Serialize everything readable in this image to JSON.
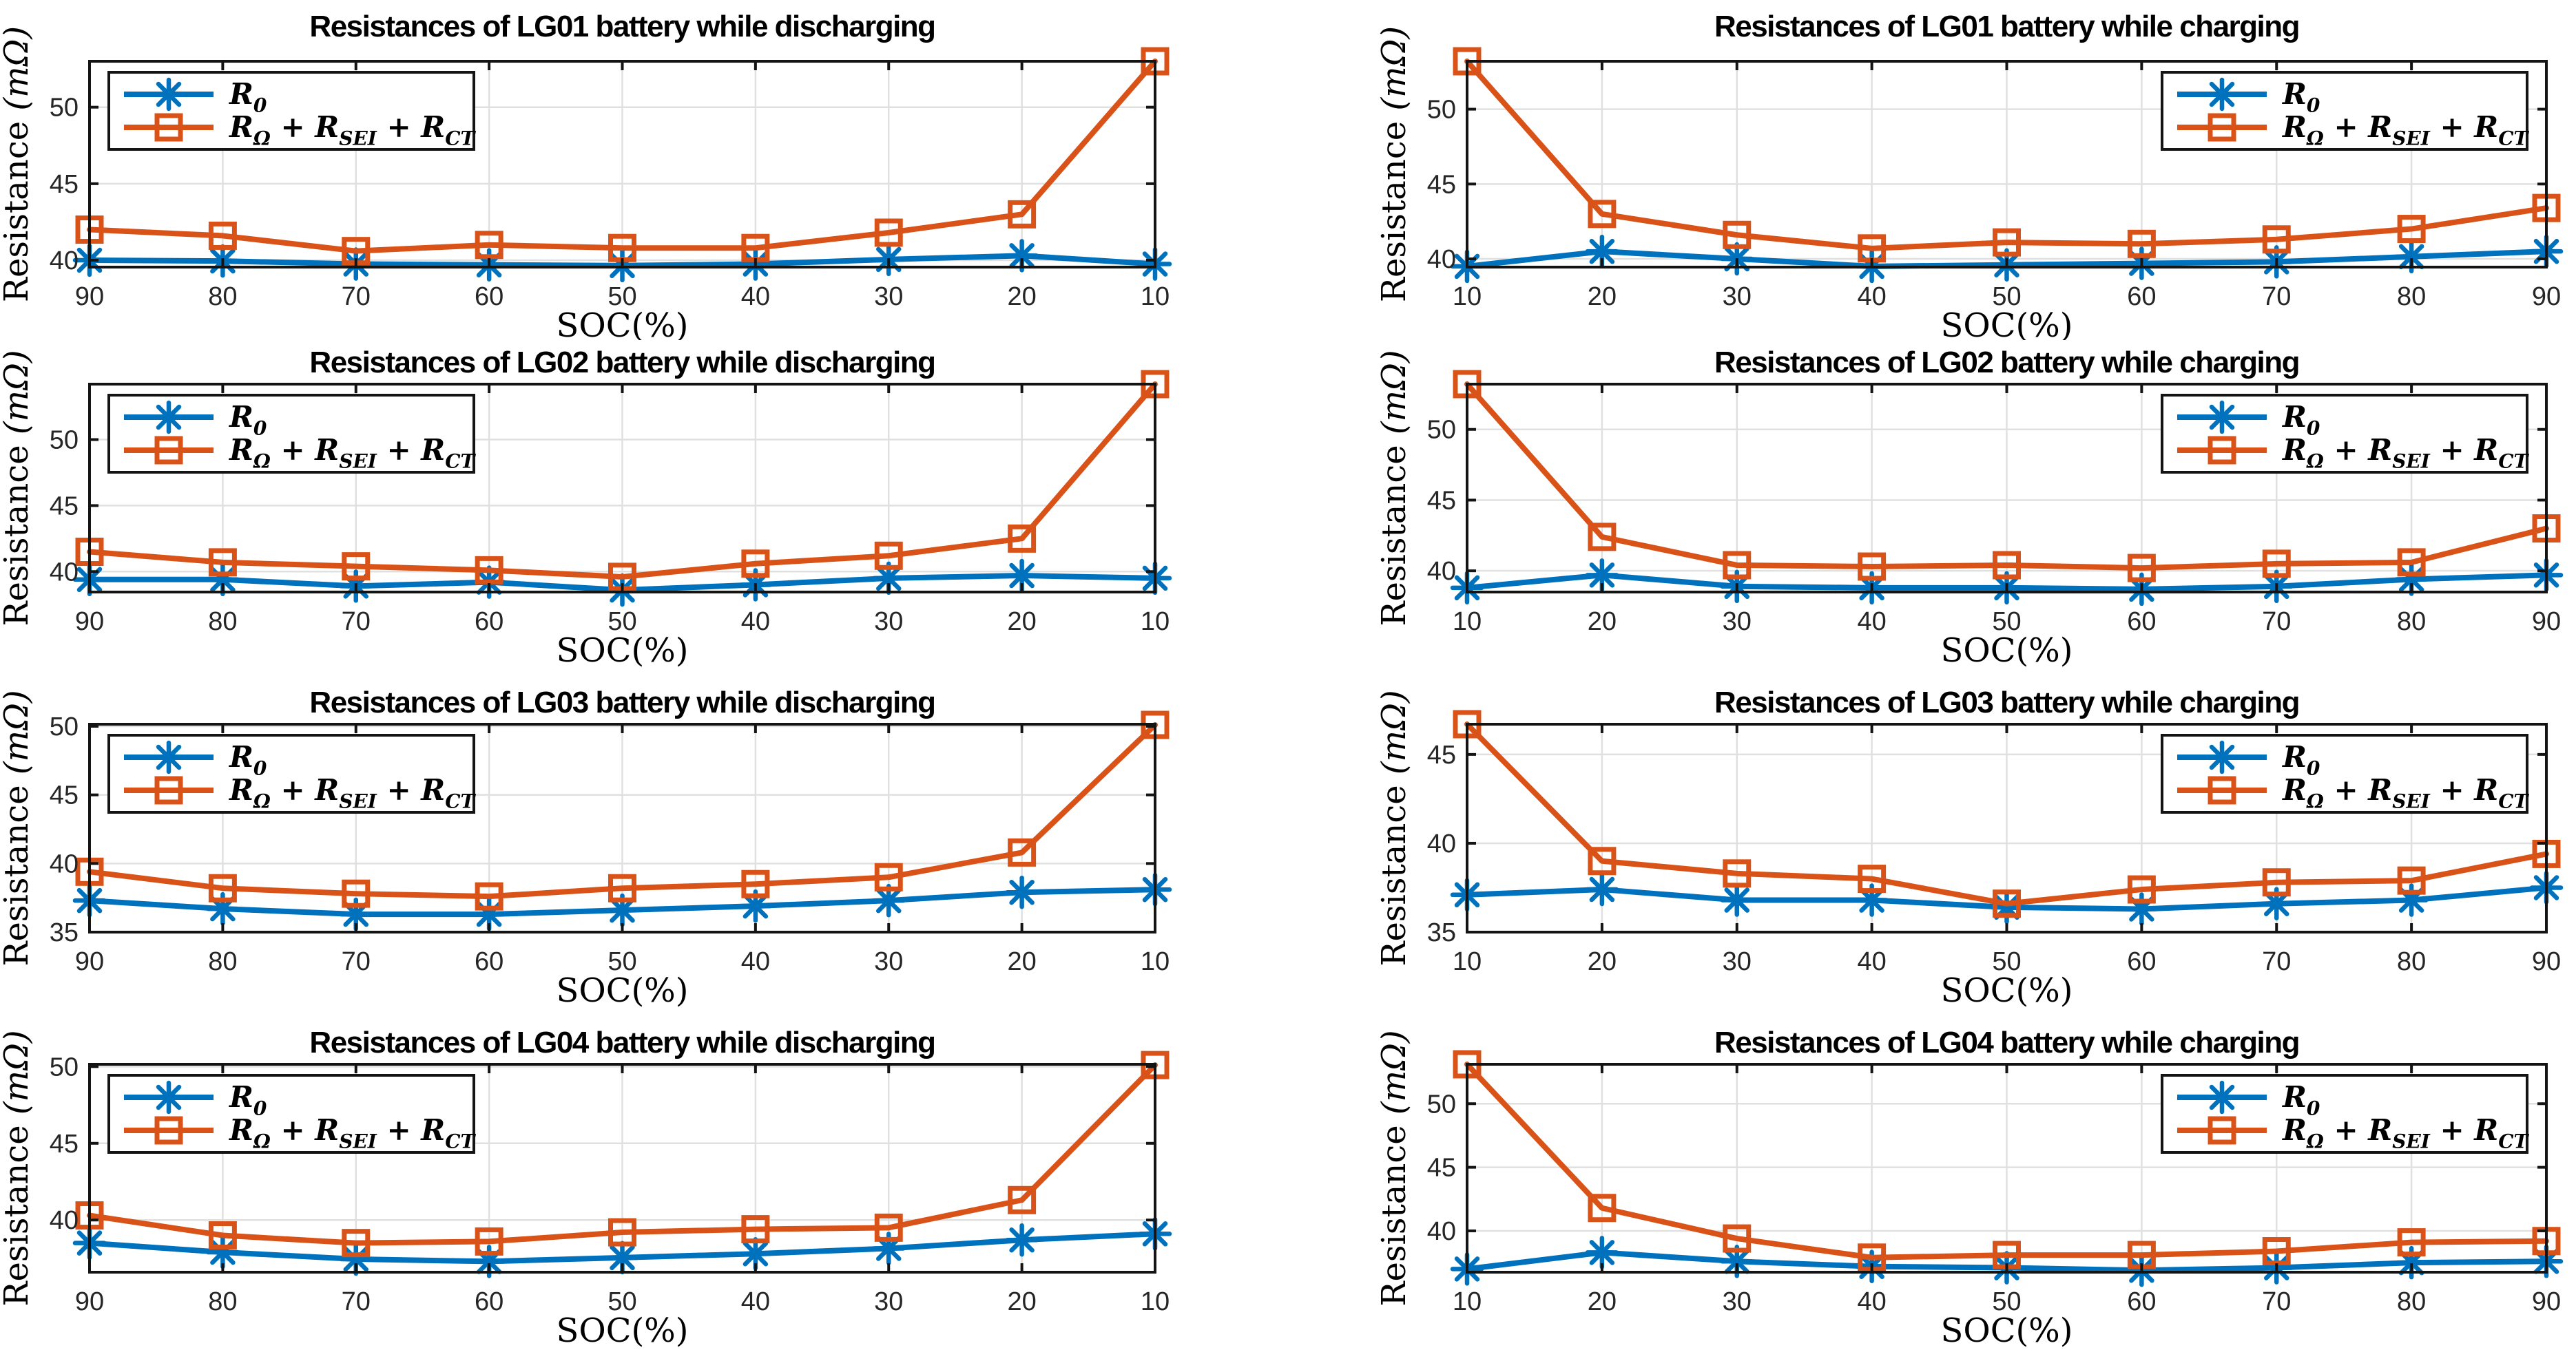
{
  "figure": {
    "ylabel": "Resistance (mΩ)",
    "xlabel": "SOC(%)",
    "series_labels": [
      "R_0",
      "R_Ω + R_SEI + R_CT"
    ],
    "colors": {
      "r0": "#0072BD",
      "rsum": "#D95319",
      "grid": "#E0E0E0",
      "axis": "#141414",
      "tick_label": "#262626",
      "background": "#FFFFFF",
      "legend_border": "#141414"
    }
  },
  "chart_data": [
    {
      "type": "line",
      "title": "Resistances of LG01 battery while discharging",
      "xlabel": "SOC(%)",
      "ylabel": "Resistance (mΩ)",
      "x": [
        90,
        80,
        70,
        60,
        50,
        40,
        30,
        20,
        10
      ],
      "ylim": [
        39.55,
        53.0
      ],
      "yticks": [
        40,
        45,
        50
      ],
      "grid": true,
      "legend_position": "northwest",
      "series": [
        {
          "id": "r0",
          "name": "R_0",
          "color": "#0072BD",
          "marker": "asterisk",
          "values": [
            40.0,
            39.95,
            39.75,
            39.7,
            39.65,
            39.75,
            40.05,
            40.3,
            39.75
          ]
        },
        {
          "id": "rsum",
          "name": "R_Ω + R_SEI + R_CT",
          "color": "#D95319",
          "marker": "square",
          "values": [
            42.0,
            41.6,
            40.6,
            41.0,
            40.8,
            40.8,
            41.8,
            43.0,
            53.0
          ]
        }
      ]
    },
    {
      "type": "line",
      "title": "Resistances of LG01 battery while charging",
      "xlabel": "SOC(%)",
      "ylabel": "Resistance (mΩ)",
      "x": [
        10,
        20,
        30,
        40,
        50,
        60,
        70,
        80,
        90
      ],
      "ylim": [
        39.45,
        53.2
      ],
      "yticks": [
        40,
        45,
        50
      ],
      "grid": true,
      "legend_position": "northeast",
      "series": [
        {
          "id": "r0",
          "name": "R_0",
          "color": "#0072BD",
          "marker": "asterisk",
          "values": [
            39.5,
            40.5,
            40.0,
            39.5,
            39.6,
            39.7,
            39.8,
            40.15,
            40.5
          ]
        },
        {
          "id": "rsum",
          "name": "R_Ω + R_SEI + R_CT",
          "color": "#D95319",
          "marker": "square",
          "values": [
            53.2,
            43.0,
            41.6,
            40.7,
            41.1,
            41.0,
            41.3,
            42.0,
            43.4
          ]
        }
      ]
    },
    {
      "type": "line",
      "title": "Resistances of LG02 battery while discharging",
      "xlabel": "SOC(%)",
      "ylabel": "Resistance (mΩ)",
      "x": [
        90,
        80,
        70,
        60,
        50,
        40,
        30,
        20,
        10
      ],
      "ylim": [
        38.45,
        54.2
      ],
      "yticks": [
        40,
        45,
        50
      ],
      "grid": true,
      "legend_position": "northwest",
      "series": [
        {
          "id": "r0",
          "name": "R_0",
          "color": "#0072BD",
          "marker": "asterisk",
          "values": [
            39.4,
            39.4,
            38.9,
            39.2,
            38.6,
            39.0,
            39.5,
            39.7,
            39.5
          ]
        },
        {
          "id": "rsum",
          "name": "R_Ω + R_SEI + R_CT",
          "color": "#D95319",
          "marker": "square",
          "values": [
            41.5,
            40.7,
            40.4,
            40.1,
            39.6,
            40.6,
            41.2,
            42.5,
            54.2
          ]
        }
      ]
    },
    {
      "type": "line",
      "title": "Resistances of LG02 battery while charging",
      "xlabel": "SOC(%)",
      "ylabel": "Resistance (mΩ)",
      "x": [
        10,
        20,
        30,
        40,
        50,
        60,
        70,
        80,
        90
      ],
      "ylim": [
        38.5,
        53.2
      ],
      "yticks": [
        40,
        45,
        50
      ],
      "grid": true,
      "legend_position": "northeast",
      "series": [
        {
          "id": "r0",
          "name": "R_0",
          "color": "#0072BD",
          "marker": "asterisk",
          "values": [
            38.8,
            39.7,
            38.9,
            38.8,
            38.8,
            38.7,
            38.9,
            39.4,
            39.7
          ]
        },
        {
          "id": "rsum",
          "name": "R_Ω + R_SEI + R_CT",
          "color": "#D95319",
          "marker": "square",
          "values": [
            53.2,
            42.4,
            40.4,
            40.3,
            40.4,
            40.2,
            40.5,
            40.6,
            43.0
          ]
        }
      ]
    },
    {
      "type": "line",
      "title": "Resistances of LG03 battery while discharging",
      "xlabel": "SOC(%)",
      "ylabel": "Resistance (mΩ)",
      "x": [
        90,
        80,
        70,
        60,
        50,
        40,
        30,
        20,
        10
      ],
      "ylim": [
        35.0,
        50.15
      ],
      "yticks": [
        35,
        40,
        45,
        50
      ],
      "grid": true,
      "legend_position": "northwest",
      "series": [
        {
          "id": "r0",
          "name": "R_0",
          "color": "#0072BD",
          "marker": "asterisk",
          "values": [
            37.3,
            36.7,
            36.3,
            36.3,
            36.6,
            36.9,
            37.3,
            37.9,
            38.1
          ]
        },
        {
          "id": "rsum",
          "name": "R_Ω + R_SEI + R_CT",
          "color": "#D95319",
          "marker": "square",
          "values": [
            39.4,
            38.2,
            37.8,
            37.6,
            38.2,
            38.5,
            39.0,
            40.8,
            50.1
          ]
        }
      ]
    },
    {
      "type": "line",
      "title": "Resistances of LG03 battery while charging",
      "xlabel": "SOC(%)",
      "ylabel": "Resistance (mΩ)",
      "x": [
        10,
        20,
        30,
        40,
        50,
        60,
        70,
        80,
        90
      ],
      "ylim": [
        35.0,
        46.7
      ],
      "yticks": [
        35,
        40,
        45
      ],
      "grid": true,
      "legend_position": "northeast",
      "series": [
        {
          "id": "r0",
          "name": "R_0",
          "color": "#0072BD",
          "marker": "asterisk",
          "values": [
            37.1,
            37.4,
            36.8,
            36.8,
            36.4,
            36.3,
            36.6,
            36.8,
            37.5
          ]
        },
        {
          "id": "rsum",
          "name": "R_Ω + R_SEI + R_CT",
          "color": "#D95319",
          "marker": "square",
          "values": [
            46.7,
            39.0,
            38.3,
            38.0,
            36.6,
            37.4,
            37.8,
            37.9,
            39.4
          ]
        }
      ]
    },
    {
      "type": "line",
      "title": "Resistances of LG04 battery while discharging",
      "xlabel": "SOC(%)",
      "ylabel": "Resistance (mΩ)",
      "x": [
        90,
        80,
        70,
        60,
        50,
        40,
        30,
        20,
        10
      ],
      "ylim": [
        36.6,
        50.15
      ],
      "yticks": [
        40,
        45,
        50
      ],
      "grid": true,
      "legend_position": "northwest",
      "series": [
        {
          "id": "r0",
          "name": "R_0",
          "color": "#0072BD",
          "marker": "asterisk",
          "values": [
            38.5,
            37.9,
            37.45,
            37.3,
            37.55,
            37.8,
            38.15,
            38.7,
            39.1
          ]
        },
        {
          "id": "rsum",
          "name": "R_Ω + R_SEI + R_CT",
          "color": "#D95319",
          "marker": "square",
          "values": [
            40.3,
            39.0,
            38.5,
            38.6,
            39.2,
            39.4,
            39.5,
            41.3,
            50.1
          ]
        }
      ]
    },
    {
      "type": "line",
      "title": "Resistances of LG04 battery while charging",
      "xlabel": "SOC(%)",
      "ylabel": "Resistance (mΩ)",
      "x": [
        10,
        20,
        30,
        40,
        50,
        60,
        70,
        80,
        90
      ],
      "ylim": [
        36.75,
        53.1
      ],
      "yticks": [
        40,
        45,
        50
      ],
      "grid": true,
      "legend_position": "northeast",
      "series": [
        {
          "id": "r0",
          "name": "R_0",
          "color": "#0072BD",
          "marker": "asterisk",
          "values": [
            37.0,
            38.3,
            37.6,
            37.2,
            37.1,
            36.9,
            37.1,
            37.5,
            37.6
          ]
        },
        {
          "id": "rsum",
          "name": "R_Ω + R_SEI + R_CT",
          "color": "#D95319",
          "marker": "square",
          "values": [
            53.1,
            41.8,
            39.4,
            37.9,
            38.1,
            38.1,
            38.4,
            39.1,
            39.2
          ]
        }
      ]
    }
  ]
}
